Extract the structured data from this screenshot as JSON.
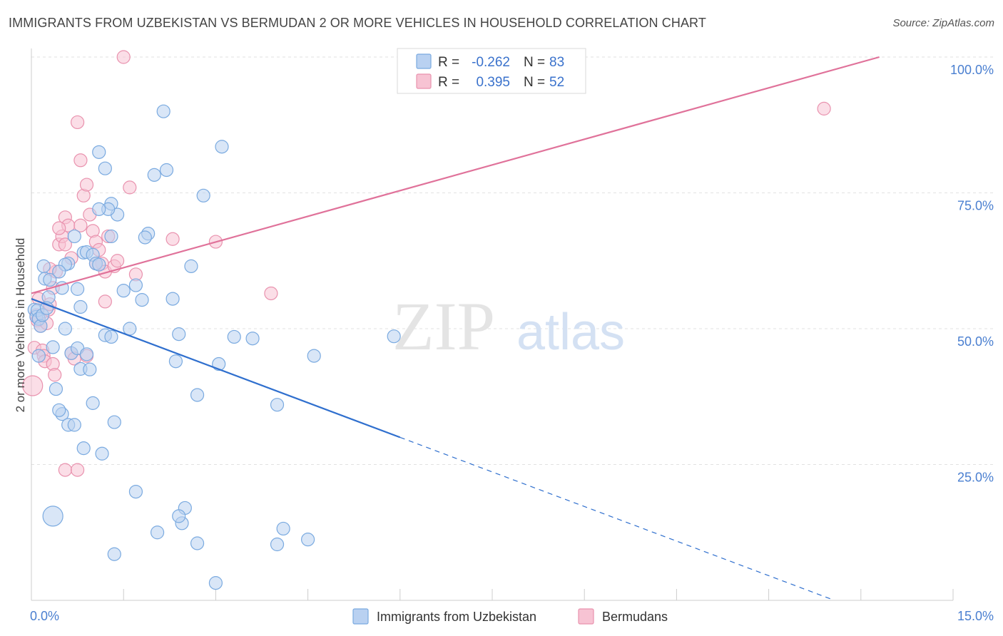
{
  "chart_data": {
    "type": "scatter",
    "title": "IMMIGRANTS FROM UZBEKISTAN VS BERMUDAN 2 OR MORE VEHICLES IN HOUSEHOLD CORRELATION CHART",
    "source": "Source: ZipAtlas.com",
    "xlabel": "",
    "ylabel": "2 or more Vehicles in Household",
    "xlim": [
      0,
      15
    ],
    "ylim": [
      0,
      100
    ],
    "x_tick_labels": {
      "min": "0.0%",
      "max": "15.0%"
    },
    "y_ticks": [
      {
        "value": 25,
        "label": "25.0%"
      },
      {
        "value": 50,
        "label": "50.0%"
      },
      {
        "value": 75,
        "label": "75.0%"
      },
      {
        "value": 100,
        "label": "100.0%"
      }
    ],
    "grid": true,
    "watermark": {
      "part1": "ZIP",
      "part2": "atlas"
    },
    "legend_stats": [
      {
        "r_label": "R =",
        "r_value": "-0.262",
        "n_label": "N =",
        "n_value": "83"
      },
      {
        "r_label": "R =",
        "r_value": "0.395",
        "n_label": "N =",
        "n_value": "52"
      }
    ],
    "series": [
      {
        "name": "Immigrants from Uzbekistan",
        "color": "#7aaae0",
        "fill": "#b9d1f1",
        "line_color": "#2f6fce",
        "trend": {
          "x0": 0.0,
          "y0": 55.5,
          "x1": 6.0,
          "y1": 30.0,
          "dash_to_x": 13.0,
          "dash_to_y": 0.3
        },
        "points": [
          [
            0.05,
            53.5
          ],
          [
            0.08,
            52.2
          ],
          [
            0.1,
            53.4
          ],
          [
            0.12,
            51.8
          ],
          [
            0.15,
            50.5
          ],
          [
            0.18,
            52.5
          ],
          [
            0.2,
            61.5
          ],
          [
            0.22,
            59.2
          ],
          [
            0.28,
            55.8
          ],
          [
            0.25,
            53.8
          ],
          [
            0.3,
            59.0
          ],
          [
            0.12,
            45.0
          ],
          [
            0.35,
            46.6
          ],
          [
            0.4,
            38.9
          ],
          [
            0.5,
            34.3
          ],
          [
            0.55,
            50.0
          ],
          [
            0.45,
            35.0
          ],
          [
            0.6,
            32.3
          ],
          [
            0.7,
            32.3
          ],
          [
            0.65,
            45.5
          ],
          [
            0.75,
            46.4
          ],
          [
            0.8,
            42.6
          ],
          [
            0.85,
            28.0
          ],
          [
            0.9,
            45.3
          ],
          [
            0.75,
            57.3
          ],
          [
            0.8,
            54.0
          ],
          [
            0.6,
            62.0
          ],
          [
            0.7,
            67.0
          ],
          [
            0.85,
            64.0
          ],
          [
            0.9,
            64.1
          ],
          [
            1.0,
            63.6
          ],
          [
            1.05,
            62.0
          ],
          [
            1.1,
            61.8
          ],
          [
            1.2,
            48.8
          ],
          [
            1.3,
            48.5
          ],
          [
            1.0,
            36.3
          ],
          [
            1.15,
            27.0
          ],
          [
            1.35,
            32.8
          ],
          [
            1.3,
            67.0
          ],
          [
            1.4,
            71.0
          ],
          [
            1.3,
            73.0
          ],
          [
            1.25,
            72.0
          ],
          [
            1.5,
            57.0
          ],
          [
            1.6,
            50.0
          ],
          [
            1.7,
            58.0
          ],
          [
            1.8,
            55.3
          ],
          [
            1.9,
            67.5
          ],
          [
            1.85,
            66.8
          ],
          [
            2.0,
            78.3
          ],
          [
            2.15,
            90.0
          ],
          [
            2.2,
            79.2
          ],
          [
            2.3,
            55.5
          ],
          [
            2.35,
            44.0
          ],
          [
            2.4,
            49.0
          ],
          [
            2.5,
            17.0
          ],
          [
            2.45,
            14.2
          ],
          [
            2.6,
            61.5
          ],
          [
            2.7,
            37.8
          ],
          [
            2.8,
            74.5
          ],
          [
            3.1,
            83.5
          ],
          [
            3.05,
            43.5
          ],
          [
            3.3,
            48.5
          ],
          [
            3.6,
            48.2
          ],
          [
            4.0,
            36.0
          ],
          [
            4.1,
            13.2
          ],
          [
            4.0,
            10.3
          ],
          [
            4.5,
            11.2
          ],
          [
            4.6,
            45.0
          ],
          [
            5.9,
            48.6
          ],
          [
            0.35,
            15.5
          ],
          [
            1.35,
            8.5
          ],
          [
            1.7,
            20.0
          ],
          [
            2.05,
            12.5
          ],
          [
            2.4,
            15.5
          ],
          [
            2.7,
            10.5
          ],
          [
            3.0,
            3.2
          ],
          [
            1.1,
            82.5
          ],
          [
            1.2,
            79.5
          ],
          [
            1.1,
            72.0
          ],
          [
            0.55,
            61.8
          ],
          [
            0.95,
            42.5
          ],
          [
            0.45,
            60.5
          ],
          [
            0.5,
            57.5
          ]
        ]
      },
      {
        "name": "Bermudans",
        "color": "#e992ae",
        "fill": "#f7c3d3",
        "line_color": "#e0729a",
        "trend": {
          "x0": 0.0,
          "y0": 56.5,
          "x1": 13.8,
          "y1": 100.0
        },
        "points": [
          [
            0.02,
            39.5
          ],
          [
            0.05,
            46.5
          ],
          [
            0.08,
            52.5
          ],
          [
            0.1,
            51.5
          ],
          [
            0.12,
            55.5
          ],
          [
            0.15,
            50.5
          ],
          [
            0.18,
            46.0
          ],
          [
            0.2,
            45.0
          ],
          [
            0.22,
            44.0
          ],
          [
            0.25,
            51.0
          ],
          [
            0.28,
            53.5
          ],
          [
            0.3,
            54.5
          ],
          [
            0.35,
            43.5
          ],
          [
            0.38,
            41.5
          ],
          [
            0.4,
            60.5
          ],
          [
            0.45,
            65.5
          ],
          [
            0.5,
            67.0
          ],
          [
            0.55,
            70.5
          ],
          [
            0.6,
            69.0
          ],
          [
            0.65,
            45.5
          ],
          [
            0.7,
            44.5
          ],
          [
            0.75,
            88.0
          ],
          [
            0.8,
            81.0
          ],
          [
            0.85,
            74.5
          ],
          [
            0.9,
            76.5
          ],
          [
            0.95,
            71.0
          ],
          [
            1.0,
            68.0
          ],
          [
            1.05,
            66.0
          ],
          [
            1.1,
            64.5
          ],
          [
            1.15,
            62.0
          ],
          [
            1.2,
            60.5
          ],
          [
            1.25,
            67.0
          ],
          [
            1.35,
            61.5
          ],
          [
            1.4,
            62.5
          ],
          [
            1.5,
            100.0
          ],
          [
            1.6,
            76.0
          ],
          [
            1.7,
            60.0
          ],
          [
            2.3,
            66.5
          ],
          [
            3.0,
            66.0
          ],
          [
            3.9,
            56.5
          ],
          [
            0.55,
            24.0
          ],
          [
            0.75,
            24.0
          ],
          [
            0.3,
            61.0
          ],
          [
            0.45,
            68.5
          ],
          [
            0.55,
            65.5
          ],
          [
            0.65,
            63.0
          ],
          [
            0.8,
            69.0
          ],
          [
            1.05,
            62.0
          ],
          [
            1.2,
            55.0
          ],
          [
            0.9,
            45.0
          ],
          [
            12.9,
            90.5
          ],
          [
            0.35,
            57.5
          ]
        ]
      }
    ]
  }
}
